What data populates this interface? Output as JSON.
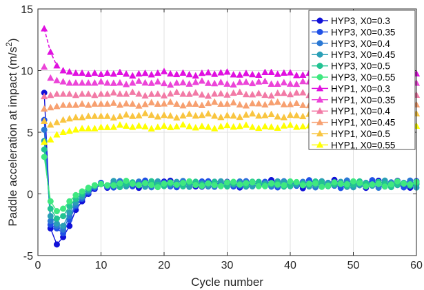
{
  "chart_data": {
    "type": "line",
    "title": "",
    "xlabel": "Cycle number",
    "ylabel": "Paddle acceleration at impact (m/s²)",
    "ylabel_main": "Paddle acceleration at impact (m/s",
    "ylabel_sup": "2",
    "ylabel_close": ")",
    "xlim": [
      0,
      60
    ],
    "ylim": [
      -5,
      15
    ],
    "xticks": [
      0,
      10,
      20,
      30,
      40,
      50,
      60
    ],
    "yticks": [
      -5,
      0,
      5,
      10,
      15
    ],
    "grid": true,
    "legend_position": "top-right",
    "series": [
      {
        "name": "HYP3, X0=0.3",
        "marker": "circle",
        "color": "#1010d8",
        "initial": [
          8.2,
          -2.8,
          -4.1,
          -3.5,
          -2.6,
          -1.3,
          -0.6,
          0.0,
          0.4,
          0.8,
          0.5
        ],
        "steady": 0.8,
        "amp": 0.35
      },
      {
        "name": "HYP3, X0=0.35",
        "marker": "circle",
        "color": "#1f50e6",
        "initial": [
          6.0,
          -2.5,
          -2.8,
          -3.2,
          -2.1,
          -1.0,
          -0.4,
          0.1,
          0.5,
          0.9,
          0.6
        ],
        "steady": 0.8,
        "amp": 0.32
      },
      {
        "name": "HYP3, X0=0.4",
        "marker": "circle",
        "color": "#2a78d4",
        "initial": [
          5.2,
          -2.2,
          -2.6,
          -2.9,
          -1.8,
          -0.9,
          -0.3,
          0.2,
          0.6,
          0.8,
          0.6
        ],
        "steady": 0.8,
        "amp": 0.3
      },
      {
        "name": "HYP3, X0=0.45",
        "marker": "circle",
        "color": "#2a9fb6",
        "initial": [
          4.3,
          -1.8,
          -2.4,
          -2.6,
          -1.5,
          -0.7,
          -0.2,
          0.3,
          0.6,
          0.8,
          0.7
        ],
        "steady": 0.8,
        "amp": 0.28
      },
      {
        "name": "HYP3, X0=0.5",
        "marker": "circle",
        "color": "#22c392",
        "initial": [
          3.6,
          -1.2,
          -2.0,
          -1.8,
          -1.0,
          -0.4,
          0.0,
          0.4,
          0.7,
          0.8,
          0.7
        ],
        "steady": 0.8,
        "amp": 0.26
      },
      {
        "name": "HYP3, X0=0.55",
        "marker": "circle",
        "color": "#3fe880",
        "initial": [
          3.0,
          -0.6,
          -1.4,
          -1.2,
          -0.6,
          -0.1,
          0.2,
          0.5,
          0.7,
          0.8,
          0.7
        ],
        "steady": 0.8,
        "amp": 0.26
      },
      {
        "name": "HYP1, X0=0.3",
        "marker": "triangle",
        "color": "#e010e0",
        "initial": [
          13.4,
          11.5,
          10.4,
          10.0,
          9.9,
          9.8,
          9.8,
          9.7,
          9.8,
          9.7,
          9.8
        ],
        "steady": 9.75,
        "amp": 0.18
      },
      {
        "name": "HYP1, X0=0.35",
        "marker": "triangle",
        "color": "#ec44d8",
        "initial": [
          10.3,
          9.4,
          9.2,
          9.1,
          9.0,
          9.0,
          9.0,
          9.0,
          9.0,
          9.1,
          9.0
        ],
        "steady": 9.0,
        "amp": 0.17
      },
      {
        "name": "HYP1, X0=0.4",
        "marker": "triangle",
        "color": "#f27aa6",
        "initial": [
          7.9,
          8.0,
          8.1,
          8.1,
          8.1,
          8.0,
          8.1,
          8.1,
          8.0,
          8.1,
          8.1
        ],
        "steady": 8.1,
        "amp": 0.17
      },
      {
        "name": "HYP1, X0=0.45",
        "marker": "triangle",
        "color": "#f7a070",
        "initial": [
          6.9,
          7.0,
          7.1,
          7.2,
          7.2,
          7.2,
          7.3,
          7.2,
          7.3,
          7.3,
          7.3
        ],
        "steady": 7.3,
        "amp": 0.17
      },
      {
        "name": "HYP1, X0=0.5",
        "marker": "triangle",
        "color": "#f9c540",
        "initial": [
          5.9,
          5.6,
          5.8,
          6.0,
          6.1,
          6.2,
          6.2,
          6.3,
          6.3,
          6.3,
          6.3
        ],
        "steady": 6.35,
        "amp": 0.18
      },
      {
        "name": "HYP1, X0=0.55",
        "marker": "triangle",
        "color": "#ffff00",
        "initial": [
          4.2,
          4.4,
          4.8,
          5.0,
          5.1,
          5.2,
          5.3,
          5.3,
          5.3,
          5.4,
          5.4
        ],
        "steady": 5.45,
        "amp": 0.16
      }
    ]
  }
}
